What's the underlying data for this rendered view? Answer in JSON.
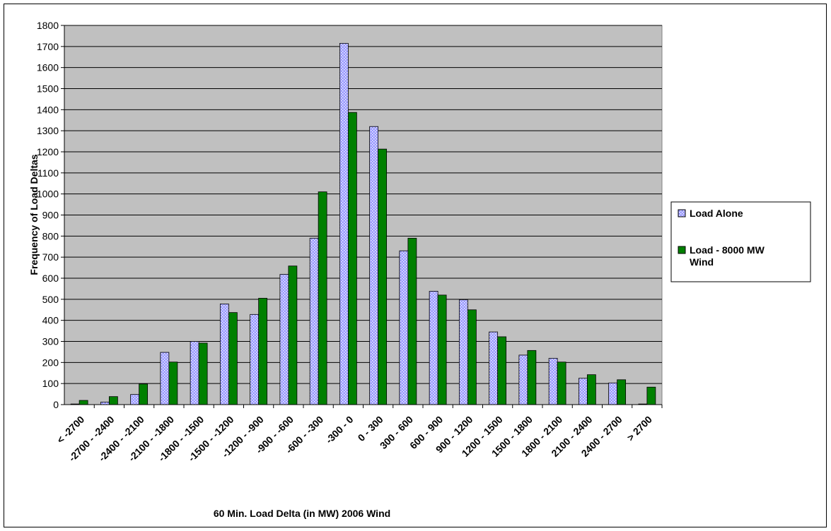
{
  "chart_data": {
    "type": "bar",
    "title": "",
    "xlabel": "60 Min. Load Delta (in MW) 2006 Wind",
    "ylabel": "Frequency of Load Deltas",
    "ylim": [
      0,
      1800
    ],
    "yticks": [
      0,
      100,
      200,
      300,
      400,
      500,
      600,
      700,
      800,
      900,
      1000,
      1100,
      1200,
      1300,
      1400,
      1500,
      1600,
      1700,
      1800
    ],
    "grid": true,
    "legend_position": "right",
    "categories": [
      "< -2700",
      "-2700 - -2400",
      "-2400 - -2100",
      "-2100 - -1800",
      "-1800 - -1500",
      "-1500 - -1200",
      "-1200 - -900",
      "-900 - -600",
      "-600 - -300",
      "-300 - 0",
      "0 - 300",
      "300 - 600",
      "600 - 900",
      "900 - 1200",
      "1200 - 1500",
      "1500 - 1800",
      "1800 - 2100",
      "2100 - 2400",
      "2400 - 2700",
      "> 2700"
    ],
    "series": [
      {
        "name": "Load Alone",
        "color": "#9999ff",
        "values": [
          3,
          12,
          48,
          248,
          300,
          478,
          428,
          618,
          790,
          1715,
          1320,
          730,
          538,
          498,
          345,
          235,
          220,
          125,
          103,
          3
        ]
      },
      {
        "name": "Load - 8000 MW Wind",
        "color": "#008000",
        "values": [
          20,
          38,
          98,
          202,
          292,
          437,
          505,
          658,
          1010,
          1387,
          1213,
          790,
          520,
          450,
          322,
          257,
          202,
          142,
          118,
          83
        ]
      }
    ]
  },
  "colors": {
    "plot_background": "#c0c0c0",
    "gridline": "#000000"
  }
}
